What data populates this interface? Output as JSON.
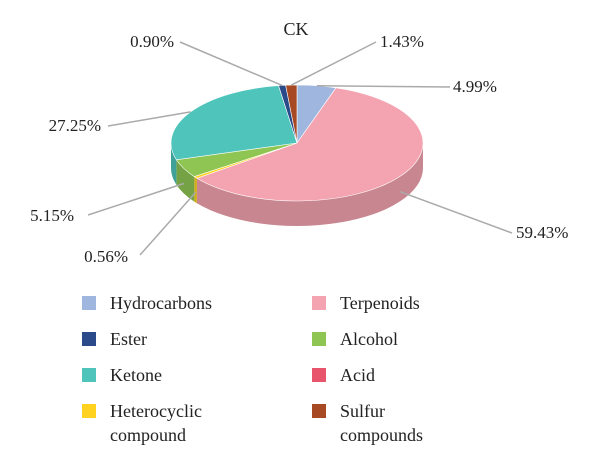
{
  "chart_data": {
    "type": "pie",
    "title": "CK",
    "labels": [
      "Hydrocarbons",
      "Terpenoids",
      "Ester",
      "Alcohol",
      "Ketone",
      "Acid",
      "Heterocyclic compound",
      "Sulfur compounds"
    ],
    "values": [
      4.99,
      59.43,
      0.9,
      5.15,
      27.25,
      0.0,
      0.56,
      1.43
    ],
    "value_labels": [
      "4.99%",
      "59.43%",
      "0.90%",
      "5.15%",
      "27.25%",
      "",
      "0.56%",
      "1.43%"
    ],
    "colors": [
      "#9fb7df",
      "#f4a3b0",
      "#2a4a8a",
      "#8fc653",
      "#4ec4bb",
      "#e8546b",
      "#ffd21f",
      "#a74a23"
    ],
    "legend_position": "bottom"
  },
  "legend": {
    "items": [
      {
        "label": "Hydrocarbons",
        "color": "#9fb7df"
      },
      {
        "label": "Terpenoids",
        "color": "#f4a3b0"
      },
      {
        "label": "Ester",
        "color": "#2a4a8a"
      },
      {
        "label": "Alcohol",
        "color": "#8fc653"
      },
      {
        "label": "Ketone",
        "color": "#4ec4bb"
      },
      {
        "label": "Acid",
        "color": "#e8546b"
      },
      {
        "label": "Heterocyclic compound",
        "color": "#ffd21f"
      },
      {
        "label": "Sulfur compounds",
        "color": "#a74a23"
      }
    ]
  }
}
